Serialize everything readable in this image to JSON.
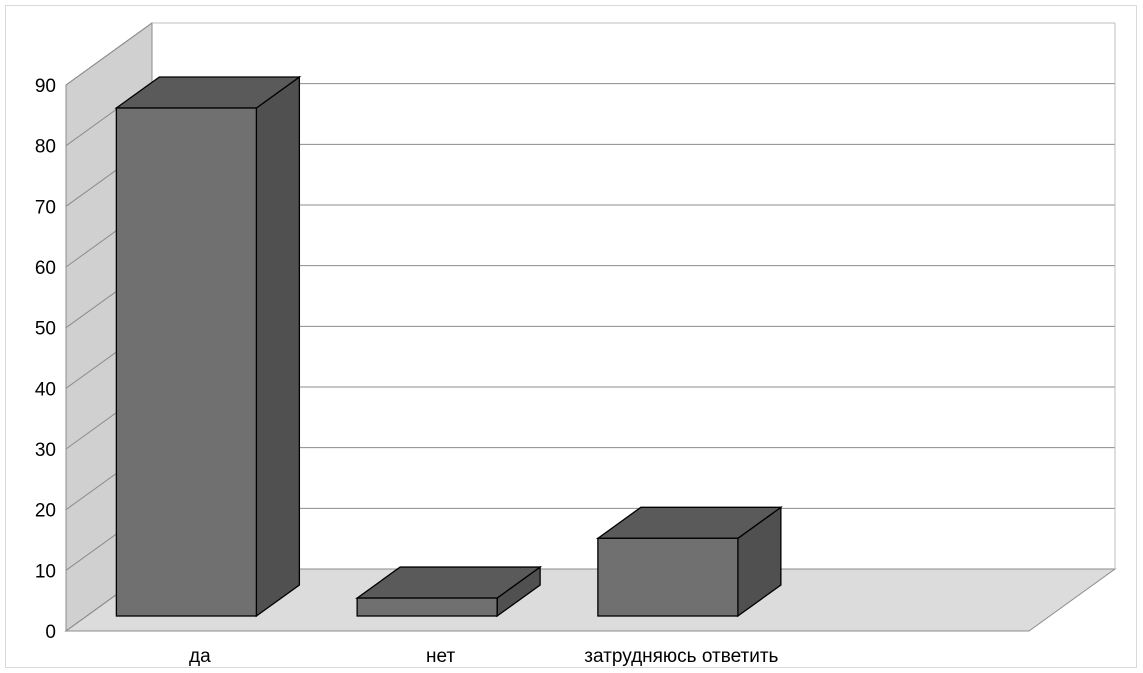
{
  "chart_data": {
    "type": "bar",
    "categories": [
      "да",
      "нет",
      "затрудняюсь ответить"
    ],
    "values": [
      85,
      3,
      13
    ],
    "title": "",
    "xlabel": "",
    "ylabel": "",
    "ylim": [
      0,
      90
    ],
    "yticks": [
      "0",
      "10",
      "20",
      "30",
      "40",
      "50",
      "60",
      "70",
      "80",
      "90"
    ],
    "grid": true,
    "legend": "none",
    "three_d": true,
    "colors": {
      "bar_front": "#707070",
      "bar_top": "#5a5a5a",
      "bar_side": "#505050",
      "wall": "#d0d0d0",
      "floor": "#dcdcdc",
      "gridline": "#8c8c8c",
      "outline": "#000000"
    }
  }
}
